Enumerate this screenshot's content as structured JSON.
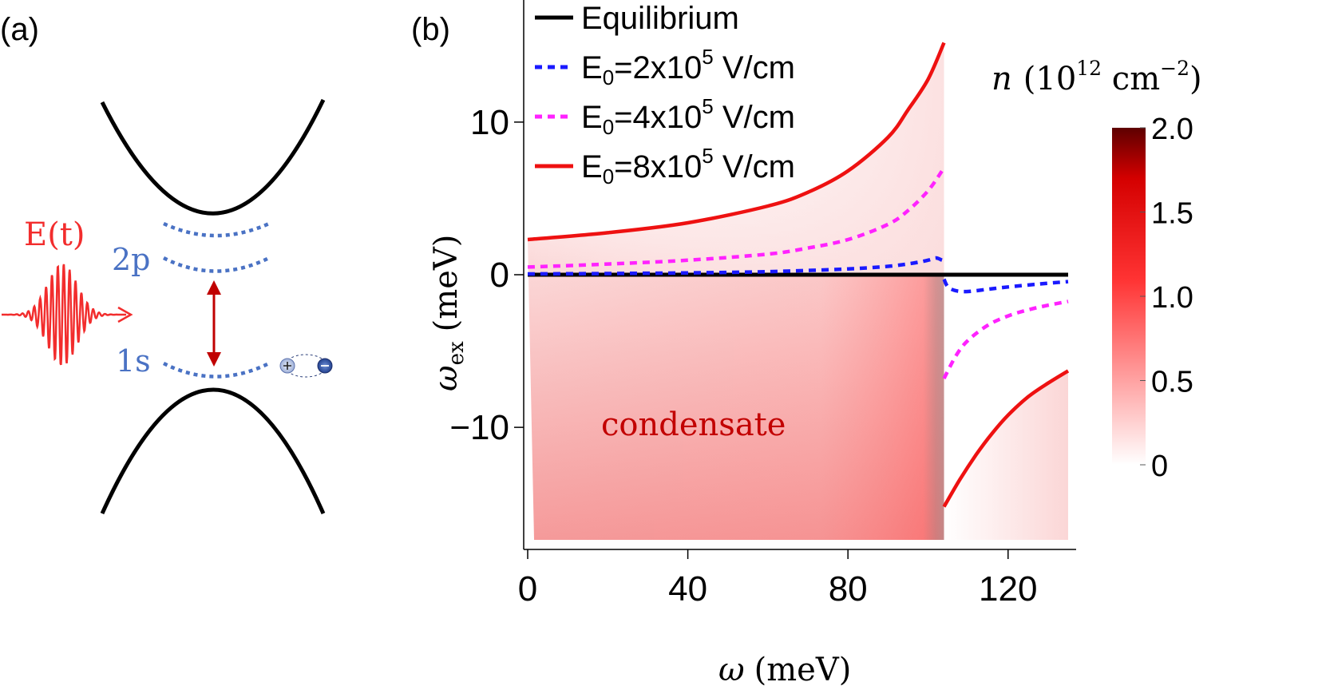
{
  "panel_a": {
    "label": "(a)",
    "field_label": "E(t)",
    "state_2p": "2p",
    "state_1s": "1s",
    "colors": {
      "band": "#000000",
      "exciton": "#4a72c4",
      "pulse": "#f22d2d",
      "transition": "#c00000"
    },
    "icons": [
      "laser-pulse-icon",
      "transition-arrow-icon",
      "exciton-pair-icon"
    ]
  },
  "panel_b": {
    "label": "(b)",
    "region_label": "condensate",
    "colorbar": {
      "title_var": "n",
      "title_unit_pre": "(10",
      "title_exp1": "12",
      "title_unit_mid": " cm",
      "title_exp2": "−2",
      "title_close": ")",
      "ticks": [
        "0",
        "0.5",
        "1.0",
        "1.5",
        "2.0"
      ],
      "tick_values": [
        0,
        0.5,
        1.0,
        1.5,
        2.0
      ],
      "range": [
        0,
        2.0
      ],
      "colors": [
        "#ffffff",
        "#ff0000",
        "#6b0000"
      ]
    }
  },
  "chart_data": {
    "type": "line",
    "xlabel_var": "ω",
    "xlabel_unit": "(meV)",
    "ylabel_var": "ω",
    "ylabel_sub": "ex",
    "ylabel_unit": "(meV)",
    "xlim": [
      -1,
      137
    ],
    "ylim": [
      -18,
      18
    ],
    "xticks": [
      0,
      40,
      80,
      120
    ],
    "xtick_labels": [
      "0",
      "40",
      "80",
      "120"
    ],
    "yticks": [
      10,
      0,
      -10
    ],
    "ytick_labels": [
      "10",
      "0",
      "−10"
    ],
    "legend": [
      {
        "name": "Equilibrium",
        "pre": "Equilibrium",
        "sub": "",
        "mid": "",
        "exp": "",
        "post": "",
        "color": "#000000",
        "dash": ""
      },
      {
        "name": "E0=2x10^5 V/cm",
        "pre": "E",
        "sub": "0",
        "mid": "=2x10",
        "exp": "5",
        "post": " V/cm",
        "color": "#1a1aff",
        "dash": "9,7"
      },
      {
        "name": "E0=4x10^5 V/cm",
        "pre": "E",
        "sub": "0",
        "mid": "=4x10",
        "exp": "5",
        "post": " V/cm",
        "color": "#ff22ff",
        "dash": "9,7"
      },
      {
        "name": "E0=8x10^5 V/cm",
        "pre": "E",
        "sub": "0",
        "mid": "=8x10",
        "exp": "5",
        "post": " V/cm",
        "color": "#ee1111",
        "dash": ""
      }
    ],
    "resonance": 104,
    "series": [
      {
        "name": "Equilibrium",
        "segments": [
          {
            "x": [
              0,
              135
            ],
            "y": [
              0,
              0
            ]
          }
        ]
      },
      {
        "name": "E0=2x10^5 V/cm",
        "segments": [
          {
            "x": [
              0,
              20,
              40,
              60,
              80,
              90,
              96,
              100,
              102,
              103.5
            ],
            "y": [
              0.05,
              0.08,
              0.12,
              0.2,
              0.38,
              0.55,
              0.75,
              0.95,
              1.1,
              0.95
            ]
          },
          {
            "x": [
              104,
              105,
              107,
              110,
              115,
              120,
              128,
              135
            ],
            "y": [
              -0.3,
              -0.8,
              -1.05,
              -1.1,
              -0.95,
              -0.8,
              -0.6,
              -0.45
            ]
          }
        ]
      },
      {
        "name": "E0=4x10^5 V/cm",
        "segments": [
          {
            "x": [
              0,
              20,
              40,
              60,
              70,
              80,
              90,
              95,
              100,
              103.5
            ],
            "y": [
              0.5,
              0.7,
              0.95,
              1.35,
              1.75,
              2.3,
              3.3,
              4.2,
              5.5,
              6.8
            ]
          },
          {
            "x": [
              104,
              107,
              110,
              115,
              120,
              125,
              130,
              135
            ],
            "y": [
              -6.8,
              -5.3,
              -4.3,
              -3.3,
              -2.7,
              -2.3,
              -2.0,
              -1.75
            ]
          }
        ]
      },
      {
        "name": "E0=8x10^5 V/cm",
        "segments": [
          {
            "x": [
              0,
              20,
              40,
              60,
              70,
              80,
              90,
              95,
              100,
              104
            ],
            "y": [
              2.3,
              2.75,
              3.4,
              4.5,
              5.4,
              6.8,
              9.0,
              10.8,
              12.8,
              15.2
            ]
          },
          {
            "x": [
              104,
              108,
              112,
              116,
              120,
              125,
              130,
              135
            ],
            "y": [
              -15.2,
              -13.4,
              -11.8,
              -10.4,
              -9.2,
              -8.0,
              -7.1,
              -6.3
            ]
          }
        ]
      }
    ]
  }
}
